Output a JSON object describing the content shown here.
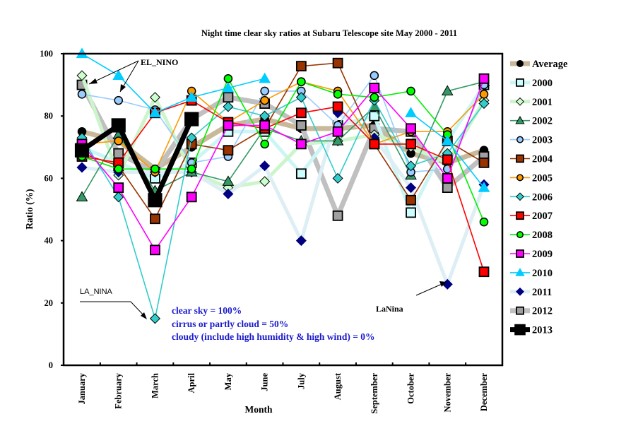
{
  "chart_data": {
    "type": "line",
    "title": "Night  time clear sky ratios at Subaru  Telescope site  May 2000  - 2011",
    "xlabel": "Month",
    "ylabel": "Ratio (%)",
    "ylim": [
      0,
      100
    ],
    "yticks": [
      "0",
      "20",
      "40",
      "60",
      "80",
      "100"
    ],
    "ytick_values": [
      0,
      20,
      40,
      60,
      80,
      100
    ],
    "categories": [
      "January",
      "February",
      "March",
      "April",
      "May",
      "June",
      "July",
      "August",
      "September",
      "October",
      "November",
      "December"
    ],
    "grid": false,
    "legend_position": "right",
    "series": [
      {
        "name": "Average",
        "color": "#c8b99a",
        "marker": "circle",
        "marker_fill": "#000000",
        "line_width": "thick",
        "values": [
          75,
          72,
          63,
          70,
          77,
          79,
          76,
          76,
          77,
          68,
          65,
          69
        ]
      },
      {
        "name": "2000",
        "color": "#ccf5f5",
        "marker": "square",
        "marker_fill": "#ccffff",
        "line_width": "medium",
        "values": [
          70,
          65,
          60,
          65,
          75,
          75,
          61.5,
          77,
          80,
          49,
          72,
          90
        ]
      },
      {
        "name": "2001",
        "color": "#ccf5cc",
        "marker": "diamond",
        "marker_fill": "#ccffcc",
        "line_width": "medium",
        "values": [
          93,
          61,
          86,
          62,
          57,
          59,
          71,
          72,
          74,
          70,
          65,
          85
        ]
      },
      {
        "name": "2002",
        "color": "#339966",
        "marker": "triangle",
        "marker_fill": "#339966",
        "line_width": "thin",
        "values": [
          54,
          74,
          56,
          62,
          59,
          76,
          72,
          72,
          83,
          61,
          88,
          91
        ]
      },
      {
        "name": "2003",
        "color": "#99ccff",
        "marker": "circle",
        "marker_fill": "#99ccff",
        "line_width": "thin",
        "values": [
          87,
          85,
          82,
          65,
          67,
          88,
          88,
          77,
          93,
          62,
          63,
          90
        ]
      },
      {
        "name": "2004",
        "color": "#993300",
        "marker": "square",
        "marker_fill": "#993300",
        "line_width": "thin",
        "values": [
          68,
          64,
          47,
          71,
          69,
          76,
          96,
          97,
          71,
          53,
          72,
          65
        ]
      },
      {
        "name": "2005",
        "color": "#ff9900",
        "marker": "circle",
        "marker_fill": "#ff9900",
        "line_width": "thin",
        "values": [
          71,
          72,
          62,
          88,
          78,
          85,
          91,
          88,
          71,
          75,
          75,
          87
        ]
      },
      {
        "name": "2006",
        "color": "#33cccc",
        "marker": "diamond",
        "marker_fill": "#33cccc",
        "line_width": "thin",
        "values": [
          73,
          54,
          15,
          73,
          83,
          80,
          86,
          60,
          85,
          64,
          68,
          84
        ]
      },
      {
        "name": "2007",
        "color": "#ff0000",
        "marker": "square",
        "marker_fill": "#ff0000",
        "line_width": "thin",
        "values": [
          67,
          65,
          81,
          85,
          78,
          76,
          81,
          83,
          71,
          71,
          66,
          30
        ]
      },
      {
        "name": "2008",
        "color": "#00ee00",
        "marker": "circle",
        "marker_fill": "#00ff00",
        "line_width": "thin",
        "values": [
          67,
          63,
          63,
          63,
          92,
          71,
          91,
          87,
          86,
          88,
          74,
          46
        ]
      },
      {
        "name": "2009",
        "color": "#ff00ff",
        "marker": "square",
        "marker_fill": "#ff00ff",
        "line_width": "thin",
        "values": [
          71,
          57,
          37,
          54,
          77,
          77,
          71,
          75,
          89,
          76,
          60,
          92
        ]
      },
      {
        "name": "2010",
        "color": "#00ccff",
        "marker": "triangle",
        "marker_fill": "#00ccff",
        "line_width": "thin",
        "values": [
          100,
          93,
          81,
          86,
          89,
          92,
          null,
          null,
          null,
          81,
          72,
          57
        ]
      },
      {
        "name": "2011",
        "color": "#ddeef4",
        "marker": "diamond",
        "marker_fill": "#000080",
        "line_width": "medium",
        "values": [
          63.5,
          62,
          62,
          62,
          55,
          64,
          40,
          81,
          73,
          57,
          26,
          58
        ]
      },
      {
        "name": "2012",
        "color": "#c0c0c0",
        "marker": "square",
        "marker_fill": "#a0a0a0",
        "line_width": "thick",
        "values": [
          90,
          68,
          62,
          79,
          86,
          84,
          77,
          48,
          76,
          75,
          57,
          67
        ]
      },
      {
        "name": "2013",
        "color": "#000000",
        "marker": "square",
        "marker_fill": "#000000",
        "line_width": "thick",
        "values": [
          69,
          77,
          53,
          79,
          null,
          null,
          null,
          null,
          null,
          null,
          null,
          null
        ]
      }
    ],
    "annotations": [
      {
        "text": "EL_NINO"
      },
      {
        "text": "LA_NINA"
      },
      {
        "text": "LaNina"
      }
    ],
    "notes": [
      "clear sky = 100%",
      "cirrus  or partly  cloud  = 50%",
      "cloudy  (include  high  humidity   & high  wind)  = 0%"
    ]
  }
}
